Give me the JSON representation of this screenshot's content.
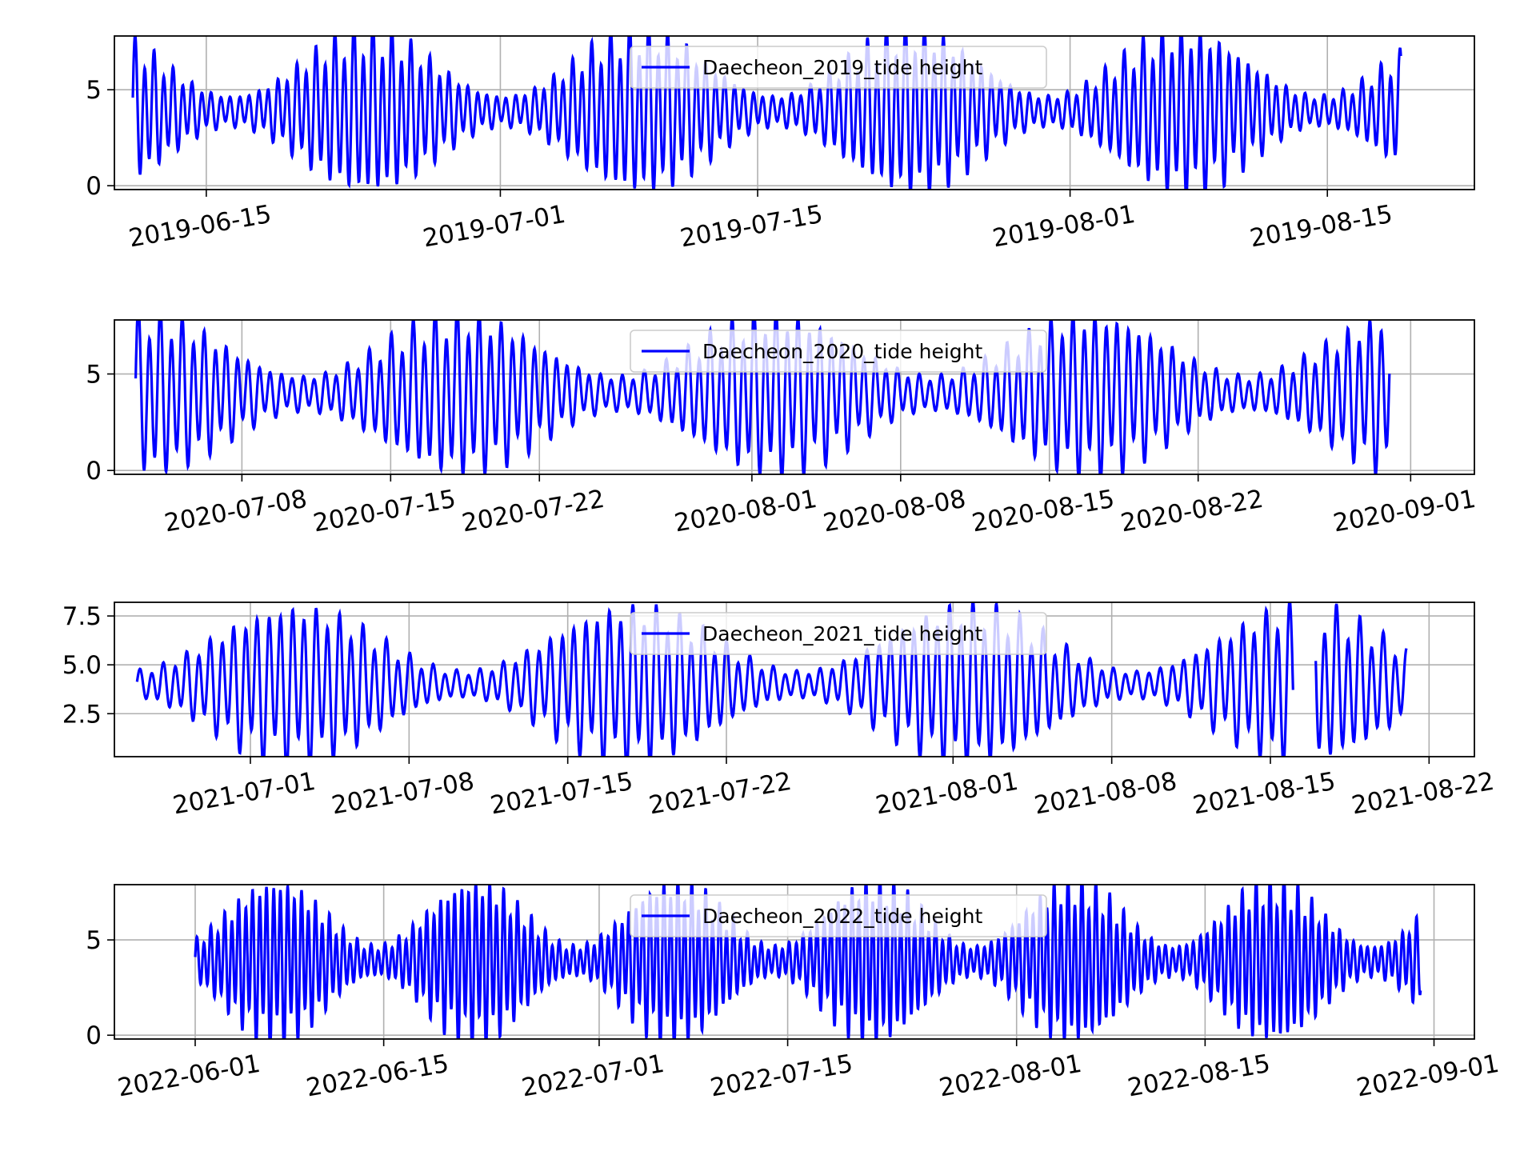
{
  "chart_data": [
    {
      "type": "line",
      "series": [
        {
          "name": "Daecheon_2019_tide height",
          "color": "#0000ff",
          "start": "2019-06-11",
          "end": "2019-08-19",
          "mean": 3.9,
          "amplitude_min": 0.7,
          "amplitude_max": 3.8,
          "spring_period_days": 14.8,
          "spring_phase": -2.0
        }
      ],
      "x_range": [
        "2019-06-10",
        "2019-08-23"
      ],
      "x_ticks": [
        "2019-06-15",
        "2019-07-01",
        "2019-07-15",
        "2019-08-01",
        "2019-08-15"
      ],
      "y_range": [
        -0.2,
        7.8
      ],
      "y_ticks": [
        0,
        5
      ],
      "y_tick_labels": [
        "0",
        "5"
      ],
      "legend": "top-center",
      "grid": true
    },
    {
      "type": "line",
      "series": [
        {
          "name": "Daecheon_2020_tide height",
          "color": "#0000ff",
          "start": "2020-07-03",
          "end": "2020-08-31",
          "mean": 4.0,
          "amplitude_min": 0.8,
          "amplitude_max": 3.7,
          "spring_period_days": 14.8,
          "spring_phase": 0.5
        }
      ],
      "x_range": [
        "2020-07-02",
        "2020-09-04"
      ],
      "x_ticks": [
        "2020-07-08",
        "2020-07-15",
        "2020-07-22",
        "2020-08-01",
        "2020-08-08",
        "2020-08-15",
        "2020-08-22",
        "2020-09-01"
      ],
      "y_range": [
        -0.2,
        7.8
      ],
      "y_ticks": [
        0,
        5
      ],
      "y_tick_labels": [
        "0",
        "5"
      ],
      "legend": "top-center",
      "grid": true
    },
    {
      "type": "line",
      "series": [
        {
          "name": "Daecheon_2021_tide height",
          "color": "#0000ff",
          "start": "2021-06-26",
          "end": "2021-08-21",
          "mean": 4.0,
          "amplitude_min": 0.6,
          "amplitude_max": 3.6,
          "spring_period_days": 14.8,
          "spring_phase": 7.0,
          "gap": [
            "2021-08-16",
            "2021-08-17"
          ]
        }
      ],
      "x_range": [
        "2021-06-25",
        "2021-08-24"
      ],
      "x_ticks": [
        "2021-07-01",
        "2021-07-08",
        "2021-07-15",
        "2021-07-22",
        "2021-08-01",
        "2021-08-08",
        "2021-08-15",
        "2021-08-22"
      ],
      "y_range": [
        0.3,
        8.2
      ],
      "y_ticks": [
        2.5,
        5.0,
        7.5
      ],
      "y_tick_labels": [
        "2.5",
        "5.0",
        "7.5"
      ],
      "legend": "top-center",
      "grid": true
    },
    {
      "type": "line",
      "series": [
        {
          "name": "Daecheon_2022_tide height",
          "color": "#0000ff",
          "start": "2022-06-01",
          "end": "2022-08-31",
          "mean": 3.9,
          "amplitude_min": 0.7,
          "amplitude_max": 3.8,
          "spring_period_days": 14.8,
          "spring_phase": 6.0
        }
      ],
      "x_range": [
        "2022-05-26",
        "2022-09-04"
      ],
      "x_ticks": [
        "2022-06-01",
        "2022-06-15",
        "2022-07-01",
        "2022-07-15",
        "2022-08-01",
        "2022-08-15",
        "2022-09-01"
      ],
      "y_range": [
        -0.2,
        7.9
      ],
      "y_ticks": [
        0,
        5
      ],
      "y_tick_labels": [
        "0",
        "5"
      ],
      "legend": "top-center",
      "grid": true
    }
  ]
}
